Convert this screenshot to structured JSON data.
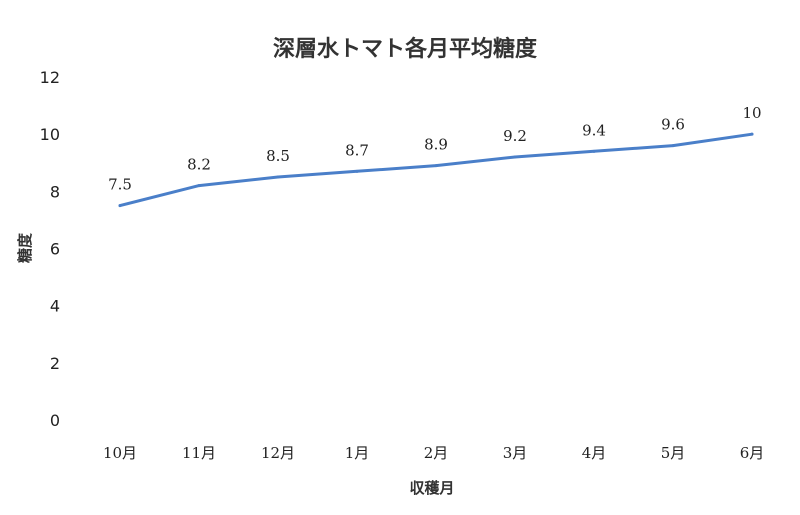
{
  "chart_data": {
    "type": "line",
    "title": "深層水トマト各月平均糖度",
    "xlabel": "収穫月",
    "ylabel": "糖度",
    "categories": [
      "10月",
      "11月",
      "12月",
      "1月",
      "2月",
      "3月",
      "4月",
      "5月",
      "6月"
    ],
    "series": [
      {
        "values": [
          7.5,
          8.2,
          8.5,
          8.7,
          8.9,
          9.2,
          9.4,
          9.6,
          10
        ]
      }
    ],
    "data_labels": [
      "7.5",
      "8.2",
      "8.5",
      "8.7",
      "8.9",
      "9.2",
      "9.4",
      "9.6",
      "10"
    ],
    "ylim": [
      0,
      12
    ],
    "yticks": [
      0,
      2,
      4,
      6,
      8,
      10,
      12
    ],
    "grid": false,
    "line_color": "#4a7fc9"
  }
}
